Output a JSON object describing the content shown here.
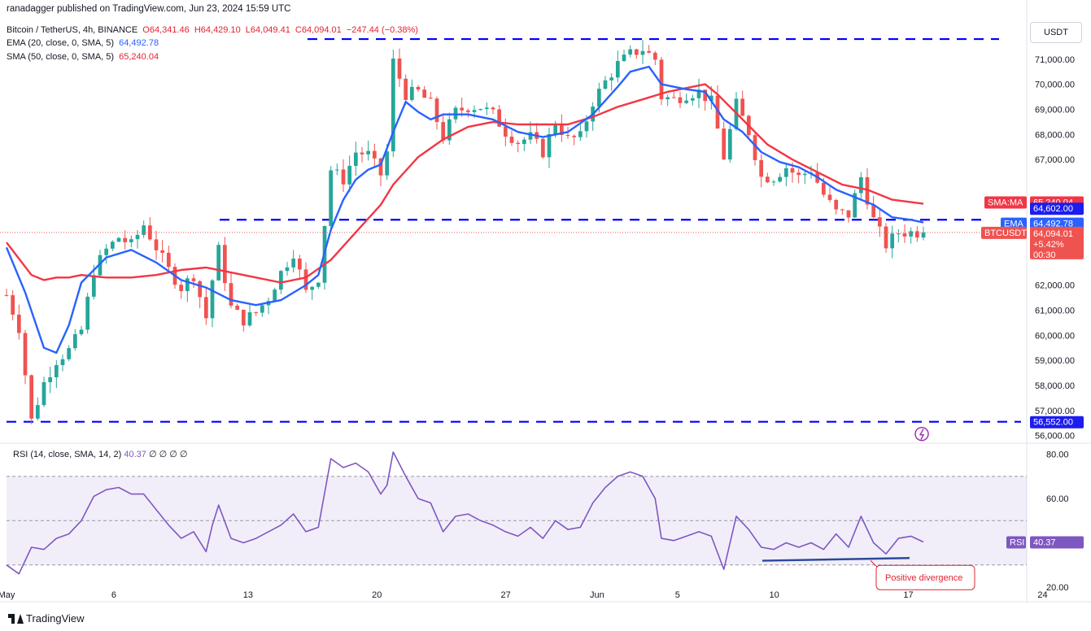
{
  "header": {
    "publisher": "ranadagger published on TradingView.com, Jun 23, 2024 15:59 UTC",
    "symbol": "Bitcoin / TetherUS, 4h, BINANCE",
    "open": "O64,341.46",
    "high": "H64,429.10",
    "low": "L64,049.41",
    "close": "C64,094.01",
    "change": "−247.44 (−0.38%)",
    "ema_label": "EMA (20, close, 0, SMA, 5)",
    "ema_value": "64,492.78",
    "sma_label": "SMA (50, close, 0, SMA, 5)",
    "sma_value": "65,240.04"
  },
  "currency_button": "USDT",
  "rsi_legend": {
    "label": "RSI (14, close, SMA, 14, 2)",
    "value": "40.37",
    "extras": "∅ ∅ ∅ ∅"
  },
  "footer": {
    "brand": "TradingView"
  },
  "colors": {
    "up": "#26a69a",
    "down": "#ef5350",
    "ema": "#2962ff",
    "sma": "#f23645",
    "rsi": "#7e57c2",
    "levels": "#0000ff",
    "price_tag": "#f23645",
    "divergence": "#2a4a9a"
  },
  "chart_data": [
    {
      "type": "candlestick",
      "title": "Bitcoin / TetherUS, 4h, BINANCE",
      "ylim": [
        55700,
        71900
      ],
      "x_ticks": [
        "May",
        "6",
        "13",
        "20",
        "27",
        "Jun",
        "5",
        "10",
        "17",
        "24"
      ],
      "y_ticks": [
        "56,000.00",
        "57,000.00",
        "58,000.00",
        "59,000.00",
        "60,000.00",
        "61,000.00",
        "62,000.00",
        "67,000.00",
        "68,000.00",
        "69,000.00",
        "70,000.00",
        "71,000.00"
      ],
      "horizontal_levels": [
        71800,
        64602,
        56552
      ],
      "price_path": [
        [
          0,
          61600
        ],
        [
          2,
          60300
        ],
        [
          4,
          56600
        ],
        [
          6,
          58100
        ],
        [
          8,
          59000
        ],
        [
          10,
          59400
        ],
        [
          12,
          60200
        ],
        [
          14,
          62600
        ],
        [
          16,
          63400
        ],
        [
          18,
          63900
        ],
        [
          20,
          63600
        ],
        [
          22,
          64400
        ],
        [
          24,
          63500
        ],
        [
          26,
          62600
        ],
        [
          28,
          61900
        ],
        [
          30,
          62400
        ],
        [
          32,
          60700
        ],
        [
          33,
          62200
        ],
        [
          34,
          63400
        ],
        [
          36,
          61100
        ],
        [
          38,
          60600
        ],
        [
          40,
          60900
        ],
        [
          42,
          61500
        ],
        [
          44,
          62500
        ],
        [
          46,
          63300
        ],
        [
          48,
          61700
        ],
        [
          50,
          62300
        ],
        [
          52,
          66600
        ],
        [
          54,
          66200
        ],
        [
          56,
          67300
        ],
        [
          58,
          67200
        ],
        [
          60,
          66400
        ],
        [
          61,
          67300
        ],
        [
          62,
          70900
        ],
        [
          64,
          69600
        ],
        [
          66,
          69700
        ],
        [
          68,
          69200
        ],
        [
          70,
          67900
        ],
        [
          72,
          68900
        ],
        [
          74,
          69100
        ],
        [
          76,
          69100
        ],
        [
          78,
          68800
        ],
        [
          80,
          68100
        ],
        [
          82,
          67700
        ],
        [
          84,
          67900
        ],
        [
          86,
          67300
        ],
        [
          88,
          68500
        ],
        [
          90,
          67800
        ],
        [
          92,
          67900
        ],
        [
          94,
          69300
        ],
        [
          96,
          70100
        ],
        [
          98,
          70800
        ],
        [
          100,
          71200
        ],
        [
          102,
          71400
        ],
        [
          104,
          71000
        ],
        [
          105,
          69500
        ],
        [
          107,
          69400
        ],
        [
          109,
          69600
        ],
        [
          111,
          69700
        ],
        [
          113,
          69300
        ],
        [
          115,
          67100
        ],
        [
          117,
          69200
        ],
        [
          119,
          68100
        ],
        [
          121,
          66300
        ],
        [
          123,
          66300
        ],
        [
          125,
          66700
        ],
        [
          127,
          66300
        ],
        [
          129,
          66600
        ],
        [
          131,
          65600
        ],
        [
          133,
          64900
        ],
        [
          135,
          64800
        ],
        [
          137,
          66300
        ],
        [
          139,
          64600
        ],
        [
          141,
          63600
        ],
        [
          143,
          64100
        ],
        [
          145,
          64100
        ],
        [
          147,
          64094
        ]
      ],
      "ema": {
        "name": "EMA",
        "value_label": "64,492.78",
        "path": [
          [
            0,
            63500
          ],
          [
            3,
            61700
          ],
          [
            6,
            59500
          ],
          [
            8,
            59300
          ],
          [
            10,
            60400
          ],
          [
            12,
            62100
          ],
          [
            16,
            63100
          ],
          [
            20,
            63400
          ],
          [
            24,
            62900
          ],
          [
            28,
            62200
          ],
          [
            32,
            61900
          ],
          [
            36,
            61400
          ],
          [
            40,
            61200
          ],
          [
            44,
            61400
          ],
          [
            48,
            62000
          ],
          [
            50,
            62400
          ],
          [
            52,
            64200
          ],
          [
            54,
            65400
          ],
          [
            56,
            66200
          ],
          [
            58,
            66600
          ],
          [
            60,
            66800
          ],
          [
            62,
            68100
          ],
          [
            64,
            69300
          ],
          [
            66,
            68900
          ],
          [
            68,
            68600
          ],
          [
            70,
            68800
          ],
          [
            74,
            68800
          ],
          [
            78,
            68600
          ],
          [
            82,
            68100
          ],
          [
            86,
            67900
          ],
          [
            90,
            68100
          ],
          [
            94,
            68800
          ],
          [
            98,
            69900
          ],
          [
            100,
            70500
          ],
          [
            103,
            70700
          ],
          [
            105,
            70000
          ],
          [
            109,
            69800
          ],
          [
            112,
            69700
          ],
          [
            115,
            68600
          ],
          [
            118,
            68100
          ],
          [
            121,
            67300
          ],
          [
            124,
            66900
          ],
          [
            127,
            66700
          ],
          [
            130,
            66300
          ],
          [
            133,
            65800
          ],
          [
            136,
            65500
          ],
          [
            139,
            65200
          ],
          [
            142,
            64700
          ],
          [
            145,
            64600
          ],
          [
            147,
            64492
          ]
        ]
      },
      "sma": {
        "name": "SMA:MA",
        "value_label": "65,240.04",
        "path": [
          [
            0,
            63700
          ],
          [
            4,
            62400
          ],
          [
            6,
            62200
          ],
          [
            8,
            62300
          ],
          [
            10,
            62300
          ],
          [
            12,
            62400
          ],
          [
            16,
            62300
          ],
          [
            20,
            62300
          ],
          [
            24,
            62400
          ],
          [
            28,
            62600
          ],
          [
            32,
            62700
          ],
          [
            36,
            62500
          ],
          [
            40,
            62300
          ],
          [
            44,
            62100
          ],
          [
            48,
            62300
          ],
          [
            52,
            63000
          ],
          [
            56,
            64100
          ],
          [
            60,
            65200
          ],
          [
            62,
            66000
          ],
          [
            66,
            67100
          ],
          [
            70,
            67800
          ],
          [
            74,
            68300
          ],
          [
            78,
            68500
          ],
          [
            82,
            68400
          ],
          [
            86,
            68400
          ],
          [
            90,
            68400
          ],
          [
            94,
            68700
          ],
          [
            98,
            69100
          ],
          [
            102,
            69400
          ],
          [
            106,
            69700
          ],
          [
            110,
            69900
          ],
          [
            112,
            70000
          ],
          [
            114,
            69600
          ],
          [
            118,
            68600
          ],
          [
            122,
            67600
          ],
          [
            126,
            67000
          ],
          [
            130,
            66500
          ],
          [
            134,
            66000
          ],
          [
            138,
            65800
          ],
          [
            142,
            65400
          ],
          [
            147,
            65240
          ]
        ]
      },
      "last_price": {
        "label": "BTCUSDT",
        "value": "64,094.01",
        "change": "+5.42%",
        "countdown": "00:30"
      },
      "price_scale_labels": [
        "65,240.04",
        "64,602.00",
        "64,492.78",
        "64,094.01",
        "56,552.00"
      ]
    },
    {
      "type": "line",
      "title": "RSI (14, close, SMA, 14, 2)",
      "ylim": [
        20,
        85
      ],
      "y_ticks": [
        "20.00",
        "60.00",
        "80.00"
      ],
      "band": [
        30,
        70
      ],
      "midline": 50,
      "series": [
        {
          "name": "RSI",
          "value_label": "40.37",
          "points": [
            [
              0,
              30
            ],
            [
              2,
              26
            ],
            [
              4,
              38
            ],
            [
              6,
              37
            ],
            [
              8,
              42
            ],
            [
              10,
              44
            ],
            [
              12,
              50
            ],
            [
              14,
              61
            ],
            [
              16,
              64
            ],
            [
              18,
              65
            ],
            [
              20,
              62
            ],
            [
              22,
              62
            ],
            [
              24,
              55
            ],
            [
              26,
              48
            ],
            [
              28,
              42
            ],
            [
              30,
              45
            ],
            [
              32,
              36
            ],
            [
              33,
              48
            ],
            [
              34,
              57
            ],
            [
              36,
              42
            ],
            [
              38,
              40
            ],
            [
              40,
              42
            ],
            [
              42,
              45
            ],
            [
              44,
              48
            ],
            [
              46,
              53
            ],
            [
              48,
              45
            ],
            [
              50,
              47
            ],
            [
              52,
              78
            ],
            [
              54,
              74
            ],
            [
              56,
              76
            ],
            [
              58,
              72
            ],
            [
              60,
              62
            ],
            [
              61,
              66
            ],
            [
              62,
              81
            ],
            [
              64,
              70
            ],
            [
              66,
              60
            ],
            [
              68,
              58
            ],
            [
              70,
              45
            ],
            [
              72,
              52
            ],
            [
              74,
              53
            ],
            [
              76,
              50
            ],
            [
              78,
              48
            ],
            [
              80,
              45
            ],
            [
              82,
              43
            ],
            [
              84,
              47
            ],
            [
              86,
              42
            ],
            [
              88,
              50
            ],
            [
              90,
              46
            ],
            [
              92,
              47
            ],
            [
              94,
              58
            ],
            [
              96,
              65
            ],
            [
              98,
              70
            ],
            [
              100,
              72
            ],
            [
              102,
              70
            ],
            [
              104,
              60
            ],
            [
              105,
              42
            ],
            [
              107,
              41
            ],
            [
              109,
              43
            ],
            [
              111,
              45
            ],
            [
              113,
              43
            ],
            [
              115,
              28
            ],
            [
              117,
              52
            ],
            [
              119,
              46
            ],
            [
              121,
              38
            ],
            [
              123,
              37
            ],
            [
              125,
              40
            ],
            [
              127,
              38
            ],
            [
              129,
              40
            ],
            [
              131,
              37
            ],
            [
              133,
              44
            ],
            [
              135,
              38
            ],
            [
              137,
              52
            ],
            [
              139,
              40
            ],
            [
              141,
              35
            ],
            [
              143,
              42
            ],
            [
              145,
              43
            ],
            [
              147,
              40.37
            ]
          ]
        }
      ],
      "annotations": [
        {
          "type": "trendline",
          "from": [
            128,
            33
          ],
          "to": [
            152,
            33.5
          ]
        },
        {
          "type": "callout",
          "text": "Positive divergence"
        }
      ]
    }
  ]
}
